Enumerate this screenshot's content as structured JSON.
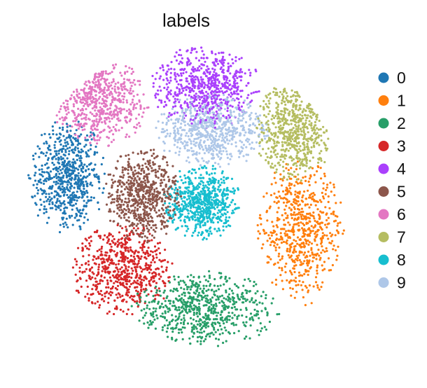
{
  "chart_data": {
    "type": "scatter",
    "title": "labels",
    "xlabel": "",
    "ylabel": "",
    "grid": false,
    "legend_position": "right",
    "series": [
      {
        "name": "0",
        "color": "#1f77b4",
        "center": [
          -3.6,
          0.9
        ],
        "spread": [
          0.75,
          1.15
        ],
        "count": 650
      },
      {
        "name": "1",
        "color": "#ff7f0e",
        "center": [
          3.5,
          -0.8
        ],
        "spread": [
          0.85,
          1.45
        ],
        "count": 650
      },
      {
        "name": "2",
        "color": "#279e68",
        "center": [
          0.6,
          -3.2
        ],
        "spread": [
          1.45,
          0.75
        ],
        "count": 650
      },
      {
        "name": "3",
        "color": "#d62728",
        "center": [
          -1.9,
          -2.0
        ],
        "spread": [
          1.0,
          0.9
        ],
        "count": 650
      },
      {
        "name": "4",
        "color": "#aa40fc",
        "center": [
          0.6,
          3.7
        ],
        "spread": [
          1.05,
          0.85
        ],
        "count": 650
      },
      {
        "name": "5",
        "color": "#8c564b",
        "center": [
          -1.3,
          0.3
        ],
        "spread": [
          0.75,
          0.95
        ],
        "count": 650
      },
      {
        "name": "6",
        "color": "#e377c2",
        "center": [
          -2.6,
          3.2
        ],
        "spread": [
          0.95,
          0.9
        ],
        "count": 650
      },
      {
        "name": "7",
        "color": "#b5bd61",
        "center": [
          3.3,
          2.3
        ],
        "spread": [
          0.75,
          1.0
        ],
        "count": 650
      },
      {
        "name": "8",
        "color": "#17becf",
        "center": [
          0.5,
          0.1
        ],
        "spread": [
          0.75,
          0.75
        ],
        "count": 650
      },
      {
        "name": "9",
        "color": "#aec7e8",
        "center": [
          0.8,
          2.3
        ],
        "spread": [
          1.1,
          0.75
        ],
        "count": 650
      }
    ],
    "xlim": [
      -5.0,
      5.0
    ],
    "ylim": [
      -5.0,
      5.0
    ]
  }
}
